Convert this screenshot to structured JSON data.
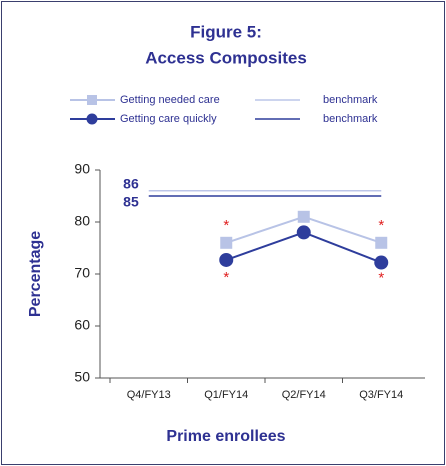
{
  "chart_data": {
    "type": "line",
    "title": [
      "Figure 5:",
      "Access Composites"
    ],
    "x_label": "Prime enrollees",
    "y_label": "Percentage",
    "categories": [
      "Q4/FY13",
      "Q1/FY14",
      "Q2/FY14",
      "Q3/FY14"
    ],
    "series": [
      {
        "name": "Getting needed care",
        "color": "#b8c3e6",
        "marker": "square",
        "values": [
          null,
          76,
          81,
          76
        ]
      },
      {
        "name": "Getting care quickly",
        "color": "#2e3d9c",
        "marker": "circle",
        "values": [
          null,
          72.7,
          78,
          72.2
        ]
      },
      {
        "name": "benchmark",
        "color": "#bcc5e8",
        "marker": "none",
        "values": [
          86,
          86,
          86,
          86
        ]
      },
      {
        "name": "benchmark",
        "color": "#2e3d9c",
        "marker": "none",
        "values": [
          85,
          85,
          85,
          85
        ]
      }
    ],
    "annotations": [
      "*",
      "*",
      "*",
      "*"
    ],
    "annotation_color": "#e02020",
    "ylim": [
      50,
      90
    ],
    "yticks": [
      50,
      60,
      70,
      80,
      90
    ]
  }
}
